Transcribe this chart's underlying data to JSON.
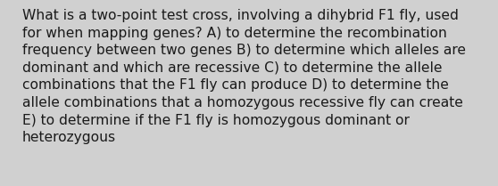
{
  "lines": [
    "What is a two-point test cross, involving a dihybrid F1 fly, used",
    "for when mapping genes? A) to determine the recombination",
    "frequency between two genes B) to determine which alleles are",
    "dominant and which are recessive C) to determine the allele",
    "combinations that the F1 fly can produce D) to determine the",
    "allele combinations that a homozygous recessive fly can create",
    "E) to determine if the F1 fly is homozygous dominant or",
    "heterozygous"
  ],
  "background_color": "#d0d0d0",
  "text_color": "#1a1a1a",
  "font_size": 11.2,
  "fig_width": 5.58,
  "fig_height": 2.09,
  "dpi": 100
}
